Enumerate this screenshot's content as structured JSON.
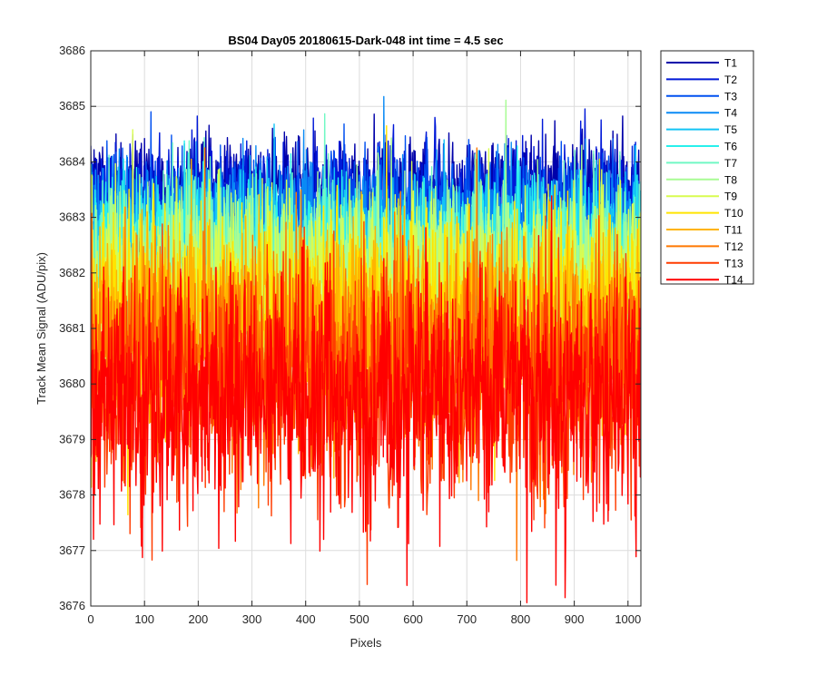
{
  "chart_data": {
    "type": "line",
    "title": "BS04 Day05 20180615-Dark-048 int time = 4.5 sec",
    "xlabel": "Pixels",
    "ylabel": "Track Mean Signal (ADU/pix)",
    "xlim": [
      0,
      1024
    ],
    "ylim": [
      3676,
      3686
    ],
    "xticks": [
      0,
      100,
      200,
      300,
      400,
      500,
      600,
      700,
      800,
      900,
      1000
    ],
    "yticks": [
      3676,
      3677,
      3678,
      3679,
      3680,
      3681,
      3682,
      3683,
      3684,
      3685,
      3686
    ],
    "grid": true,
    "legend_position": "outside-top-right",
    "n_points": 1024,
    "series": [
      {
        "name": "T1",
        "color": "#0000aa",
        "mean": 3683.6,
        "spread": 0.45
      },
      {
        "name": "T2",
        "color": "#0018d8",
        "mean": 3683.3,
        "spread": 0.5
      },
      {
        "name": "T3",
        "color": "#0050f0",
        "mean": 3683.0,
        "spread": 0.55
      },
      {
        "name": "T4",
        "color": "#0a8af5",
        "mean": 3682.8,
        "spread": 0.6
      },
      {
        "name": "T5",
        "color": "#14c4f5",
        "mean": 3682.6,
        "spread": 0.65
      },
      {
        "name": "T6",
        "color": "#28f0ec",
        "mean": 3682.4,
        "spread": 0.7
      },
      {
        "name": "T7",
        "color": "#70f8c4",
        "mean": 3682.2,
        "spread": 0.75
      },
      {
        "name": "T8",
        "color": "#a8fc94",
        "mean": 3682.0,
        "spread": 0.8
      },
      {
        "name": "T9",
        "color": "#d8fc50",
        "mean": 3681.7,
        "spread": 0.85
      },
      {
        "name": "T10",
        "color": "#ffe400",
        "mean": 3681.3,
        "spread": 0.9
      },
      {
        "name": "T11",
        "color": "#ffb400",
        "mean": 3680.9,
        "spread": 0.95
      },
      {
        "name": "T12",
        "color": "#ff7800",
        "mean": 3680.5,
        "spread": 1.0
      },
      {
        "name": "T13",
        "color": "#ff3c00",
        "mean": 3680.0,
        "spread": 1.05
      },
      {
        "name": "T14",
        "color": "#ff0000",
        "mean": 3679.8,
        "spread": 1.1
      }
    ]
  }
}
